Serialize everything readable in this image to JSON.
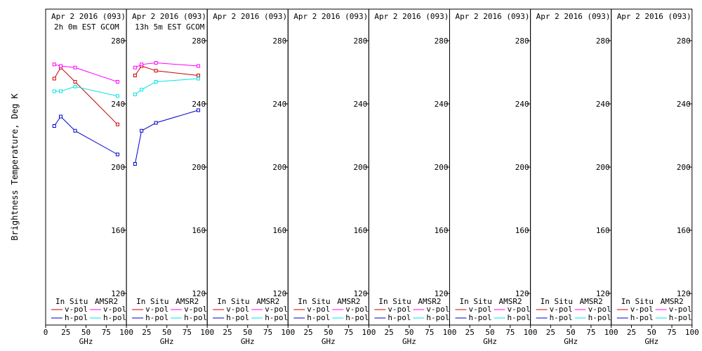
{
  "figure": {
    "ylabel": "Brightness Temperature, Deg K",
    "xlabel": "GHz"
  },
  "legend": {
    "col1_title": "In Situ",
    "col2_title": "AMSR2",
    "vpol": "v-pol",
    "hpol": "h-pol"
  },
  "colors": {
    "insitu_v": "#cc0000",
    "insitu_h": "#0000cc",
    "amsr2_v": "#ff00ff",
    "amsr2_h": "#00e5e5"
  },
  "chart_data": [
    {
      "type": "line",
      "title": "Apr 2 2016 (093)",
      "subtitle": "2h 0m EST GCOM",
      "xlabel": "GHz",
      "ylabel": "Brightness Temperature, Deg K",
      "xlim": [
        0,
        100
      ],
      "ylim": [
        100,
        300
      ],
      "xticks": [
        0,
        25,
        50,
        75,
        100
      ],
      "yticks": [
        120,
        160,
        200,
        240,
        280
      ],
      "series": [
        {
          "name": "v-pol",
          "group": "In Situ",
          "x": [
            10.65,
            18.7,
            36.5,
            89
          ],
          "y": [
            256,
            263,
            254,
            227
          ]
        },
        {
          "name": "h-pol",
          "group": "In Situ",
          "x": [
            10.65,
            18.7,
            36.5,
            89
          ],
          "y": [
            226,
            232,
            223,
            208
          ]
        },
        {
          "name": "v-pol",
          "group": "AMSR2",
          "x": [
            10.65,
            18.7,
            36.5,
            89
          ],
          "y": [
            265,
            264,
            263,
            254
          ]
        },
        {
          "name": "h-pol",
          "group": "AMSR2",
          "x": [
            10.65,
            18.7,
            36.5,
            89
          ],
          "y": [
            248,
            248,
            251,
            245
          ]
        }
      ]
    },
    {
      "type": "line",
      "title": "Apr 2 2016 (093)",
      "subtitle": "13h 5m EST GCOM",
      "xlabel": "GHz",
      "xlim": [
        0,
        100
      ],
      "ylim": [
        100,
        300
      ],
      "xticks": [
        25,
        50,
        75,
        100
      ],
      "yticks": [
        120,
        160,
        200,
        240,
        280
      ],
      "series": [
        {
          "name": "v-pol",
          "group": "In Situ",
          "x": [
            10.65,
            18.7,
            36.5,
            89
          ],
          "y": [
            258,
            264,
            261,
            258
          ]
        },
        {
          "name": "h-pol",
          "group": "In Situ",
          "x": [
            10.65,
            18.7,
            36.5,
            89
          ],
          "y": [
            202,
            223,
            228,
            236
          ]
        },
        {
          "name": "v-pol",
          "group": "AMSR2",
          "x": [
            10.65,
            18.7,
            36.5,
            89
          ],
          "y": [
            263,
            265,
            266,
            264
          ]
        },
        {
          "name": "h-pol",
          "group": "AMSR2",
          "x": [
            10.65,
            18.7,
            36.5,
            89
          ],
          "y": [
            246,
            249,
            254,
            256
          ]
        }
      ]
    },
    {
      "type": "line",
      "title": "Apr 2 2016 (093)",
      "subtitle": "",
      "xlabel": "GHz",
      "xlim": [
        0,
        100
      ],
      "ylim": [
        100,
        300
      ],
      "xticks": [
        25,
        50,
        75,
        100
      ],
      "yticks": [
        120,
        160,
        200,
        240,
        280
      ],
      "series": []
    },
    {
      "type": "line",
      "title": "Apr 2 2016 (093)",
      "subtitle": "",
      "xlabel": "GHz",
      "xlim": [
        0,
        100
      ],
      "ylim": [
        100,
        300
      ],
      "xticks": [
        25,
        50,
        75,
        100
      ],
      "yticks": [
        120,
        160,
        200,
        240,
        280
      ],
      "series": []
    },
    {
      "type": "line",
      "title": "Apr 2 2016 (093)",
      "subtitle": "",
      "xlabel": "GHz",
      "xlim": [
        0,
        100
      ],
      "ylim": [
        100,
        300
      ],
      "xticks": [
        25,
        50,
        75,
        100
      ],
      "yticks": [
        120,
        160,
        200,
        240,
        280
      ],
      "series": []
    },
    {
      "type": "line",
      "title": "Apr 2 2016 (093)",
      "subtitle": "",
      "xlabel": "GHz",
      "xlim": [
        0,
        100
      ],
      "ylim": [
        100,
        300
      ],
      "xticks": [
        25,
        50,
        75,
        100
      ],
      "yticks": [
        120,
        160,
        200,
        240,
        280
      ],
      "series": []
    },
    {
      "type": "line",
      "title": "Apr 2 2016 (093)",
      "subtitle": "",
      "xlabel": "GHz",
      "xlim": [
        0,
        100
      ],
      "ylim": [
        100,
        300
      ],
      "xticks": [
        25,
        50,
        75,
        100
      ],
      "yticks": [
        120,
        160,
        200,
        240,
        280
      ],
      "series": []
    },
    {
      "type": "line",
      "title": "Apr 2 2016 (093)",
      "subtitle": "",
      "xlabel": "GHz",
      "xlim": [
        0,
        100
      ],
      "ylim": [
        100,
        300
      ],
      "xticks": [
        25,
        50,
        75,
        100
      ],
      "yticks": [
        120,
        160,
        200,
        240,
        280
      ],
      "series": []
    }
  ]
}
